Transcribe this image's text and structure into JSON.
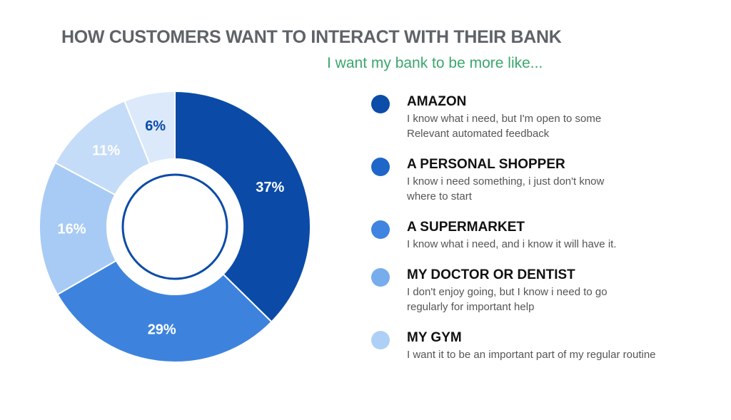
{
  "title": "HOW CUSTOMERS WANT TO INTERACT WITH THEIR BANK",
  "subtitle": "I want my bank to be more like...",
  "chart_data": {
    "type": "pie",
    "title": "HOW CUSTOMERS WANT TO INTERACT WITH THEIR BANK",
    "subtitle": "I want my bank to be more like...",
    "categories": [
      "AMAZON",
      "A PERSONAL SHOPPER",
      "A SUPERMARKET",
      "MY DOCTOR OR DENTIST",
      "MY GYM"
    ],
    "values": [
      37,
      29,
      16,
      11,
      6
    ],
    "value_labels": [
      "37%",
      "29%",
      "16%",
      "11%",
      "6%"
    ],
    "legend_position": "right"
  },
  "legend": [
    {
      "name": "AMAZON",
      "color": "#0b4da8",
      "desc": [
        "I know what i need, but I'm open to some",
        "Relevant automated feedback"
      ]
    },
    {
      "name": "A PERSONAL SHOPPER",
      "color": "#1f66c9",
      "desc": [
        "I know i need something, i just don't know",
        "where to start"
      ]
    },
    {
      "name": "A SUPERMARKET",
      "color": "#3e84e0",
      "desc": [
        "I know what i need, and i know it will have it."
      ]
    },
    {
      "name": "MY DOCTOR OR DENTIST",
      "color": "#77aded",
      "desc": [
        "I don't enjoy going, but I know i need to go",
        "regularly for important help"
      ]
    },
    {
      "name": "MY GYM",
      "color": "#afd0f6",
      "desc": [
        "I want it to be an important part of my regular routine"
      ]
    }
  ],
  "colors": {
    "slices": [
      "#0b4ba7",
      "#3d83dd",
      "#a7cbf5",
      "#c5dcf8",
      "#dbe9fb"
    ],
    "slice_labels": [
      "#ffffff",
      "#ffffff",
      "#ffffff",
      "#ffffff",
      "#0b4ba7"
    ],
    "title": "#5f6368",
    "subtitle": "#3aa76d"
  }
}
